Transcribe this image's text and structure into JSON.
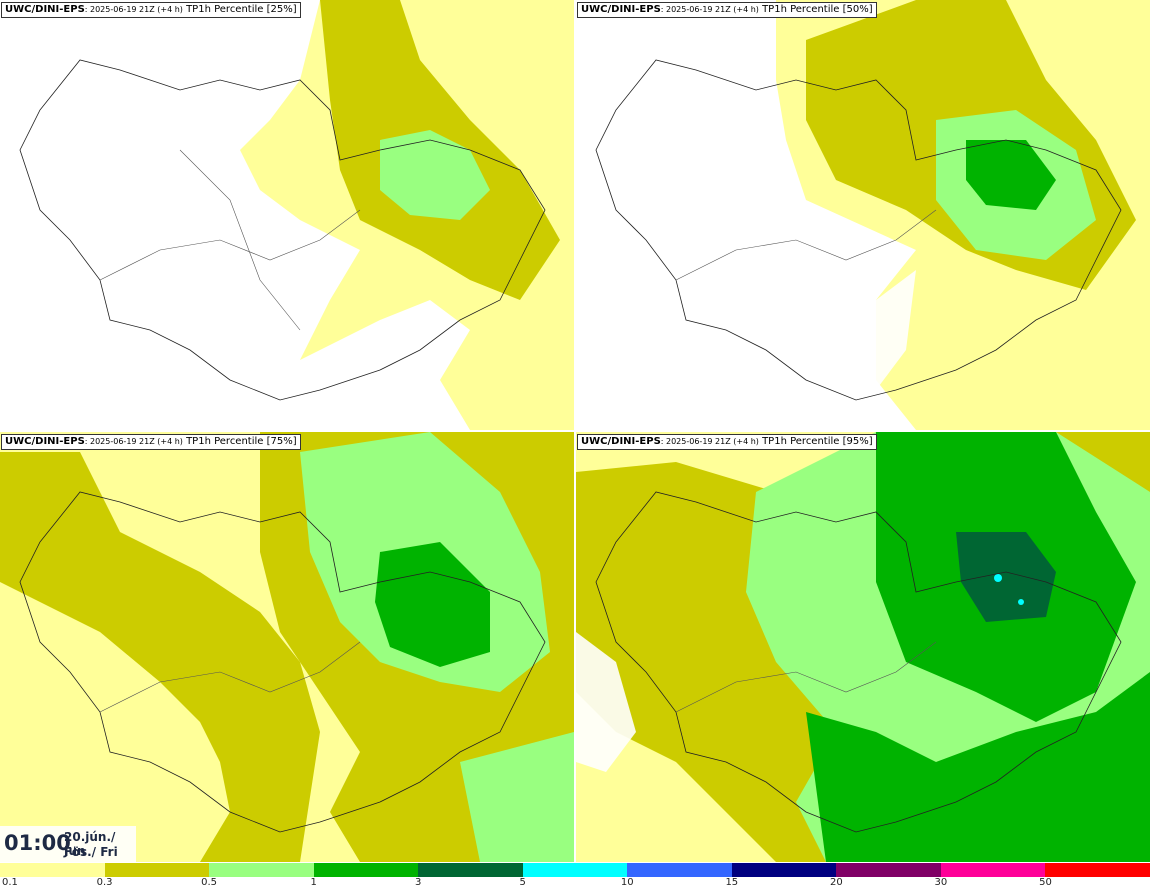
{
  "panels": [
    {
      "model": "UWC/DINI-EPS",
      "run": ": 2025-06-19 21Z (+4 h)",
      "product": "TP1h Percentile [25%]"
    },
    {
      "model": "UWC/DINI-EPS",
      "run": ": 2025-06-19 21Z (+4 h)",
      "product": "TP1h Percentile [50%]"
    },
    {
      "model": "UWC/DINI-EPS",
      "run": ": 2025-06-19 21Z (+4 h)",
      "product": "TP1h Percentile [75%]"
    },
    {
      "model": "UWC/DINI-EPS",
      "run": ": 2025-06-19 21Z (+4 h)",
      "product": "TP1h Percentile [95%]"
    }
  ],
  "time": {
    "clock": "01:00",
    "date": "20.jún./ Jun",
    "day": "Fös./ Fri"
  },
  "colorbar": {
    "colors": [
      "#ffff99",
      "#cccc00",
      "#99ff80",
      "#00b300",
      "#006633",
      "#00ffff",
      "#3366ff",
      "#000080",
      "#800066",
      "#ff0099",
      "#ff0000"
    ],
    "ticks": [
      "0.1",
      "0.3",
      "0.5",
      "1",
      "3",
      "5",
      "10",
      "15",
      "20",
      "30",
      "50"
    ]
  },
  "palette": {
    "very_light": "#ffff99",
    "light": "#cccc00",
    "lightgreen": "#99ff80",
    "green": "#00b300",
    "darkgreen": "#006633",
    "cyan": "#00ffff"
  }
}
